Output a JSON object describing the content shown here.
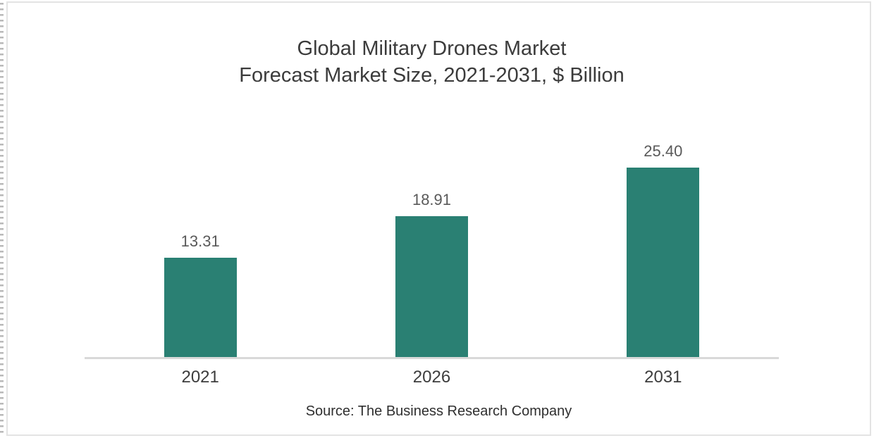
{
  "frame": {
    "card_border_color": "#e3e3e3",
    "perforation_color": "#b9b9b9",
    "background_color": "#ffffff"
  },
  "chart_data": {
    "type": "bar",
    "title": "Global Military Drones Market",
    "subtitle": "Forecast Market Size, 2021-2031, $ Billion",
    "categories": [
      "2021",
      "2026",
      "2031"
    ],
    "values": [
      13.31,
      18.91,
      25.4
    ],
    "value_labels": [
      "13.31",
      "18.91",
      "25.40"
    ],
    "xlabel": "",
    "ylabel": "",
    "ylim": [
      0,
      32.6
    ],
    "grid": false,
    "legend": false,
    "bar_color": "#2a8073",
    "axis_color": "#d9d9d9",
    "title_color": "#3b3b3b",
    "value_label_color": "#595959",
    "tick_label_color": "#3d3d3d",
    "source": "Source: The Business Research Company"
  }
}
